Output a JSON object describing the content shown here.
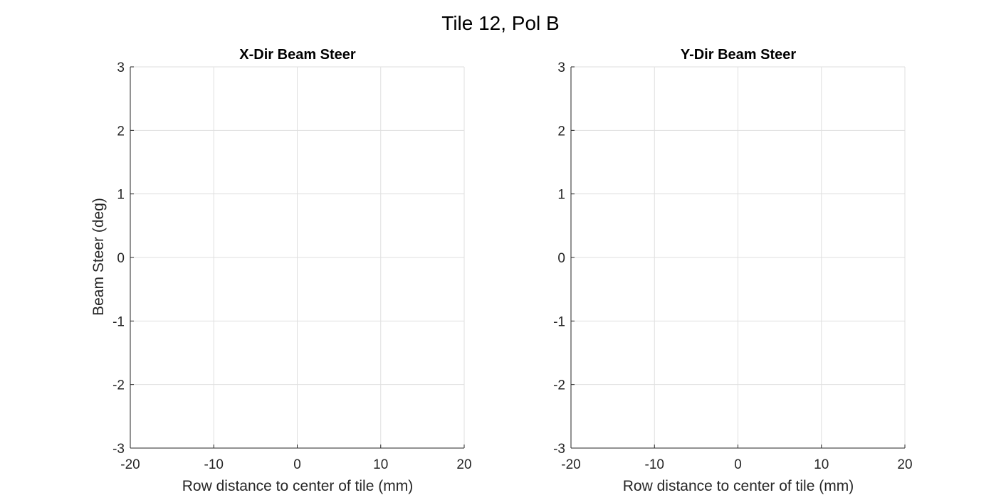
{
  "figure": {
    "title": "Tile 12, Pol B"
  },
  "chart_data": [
    {
      "type": "line",
      "title": "X-Dir Beam Steer",
      "xlabel": "Row distance to center of tile (mm)",
      "ylabel": "Beam Steer (deg)",
      "xlim": [
        -20,
        20
      ],
      "ylim": [
        -3,
        3
      ],
      "xticks": [
        -20,
        -10,
        0,
        10,
        20
      ],
      "yticks": [
        -3,
        -2,
        -1,
        0,
        1,
        2,
        3
      ],
      "xtick_labels": [
        "-20",
        "-10",
        "0",
        "10",
        "20"
      ],
      "ytick_labels": [
        "-3",
        "-2",
        "-1",
        "0",
        "1",
        "2",
        "3"
      ],
      "grid": true,
      "series": []
    },
    {
      "type": "line",
      "title": "Y-Dir Beam Steer",
      "xlabel": "Row distance to center of tile (mm)",
      "ylabel": "",
      "xlim": [
        -20,
        20
      ],
      "ylim": [
        -3,
        3
      ],
      "xticks": [
        -20,
        -10,
        0,
        10,
        20
      ],
      "yticks": [
        -3,
        -2,
        -1,
        0,
        1,
        2,
        3
      ],
      "xtick_labels": [
        "-20",
        "-10",
        "0",
        "10",
        "20"
      ],
      "ytick_labels": [
        "-3",
        "-2",
        "-1",
        "0",
        "1",
        "2",
        "3"
      ],
      "grid": true,
      "series": []
    }
  ]
}
